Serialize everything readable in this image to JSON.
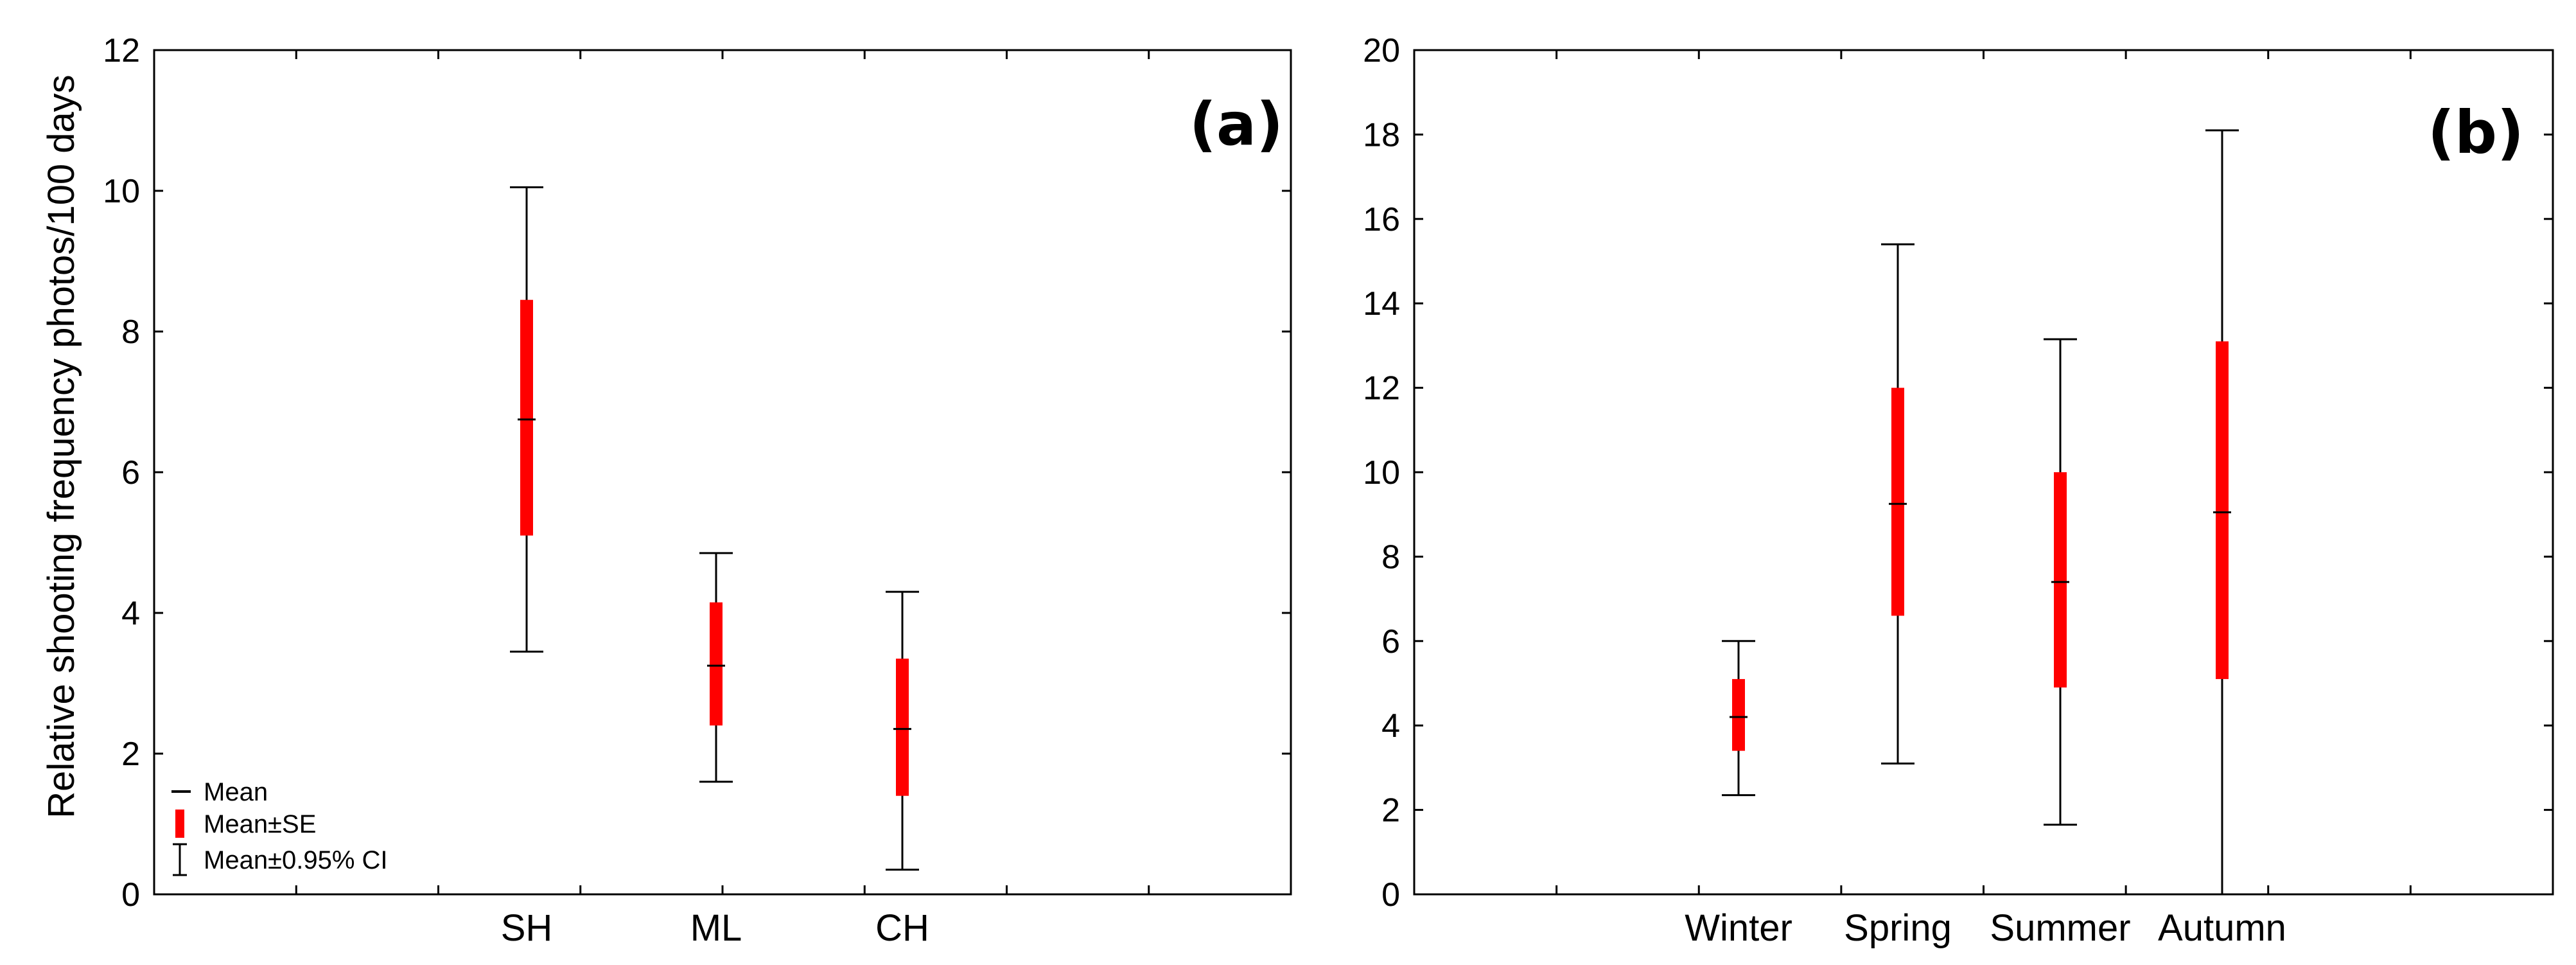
{
  "chart_data": [
    {
      "type": "box",
      "panel_label": "(a)",
      "ylabel": "Relative shooting frequency photos/100 days",
      "xlabel": "",
      "ylim": [
        0,
        12
      ],
      "yticks": [
        0,
        2,
        4,
        6,
        8,
        10,
        12
      ],
      "categories": [
        "SH",
        "ML",
        "CH"
      ],
      "series": [
        {
          "mean": [
            6.75,
            3.25,
            2.35
          ],
          "se_low": [
            5.1,
            2.4,
            1.4
          ],
          "se_high": [
            8.45,
            4.15,
            3.35
          ],
          "ci_low": [
            3.45,
            1.6,
            0.35
          ],
          "ci_high": [
            10.05,
            4.85,
            4.3
          ]
        }
      ],
      "legend": {
        "position": "bottom-left",
        "entries": [
          "Mean",
          "Mean±SE",
          "Mean±0.95% CI"
        ]
      },
      "colors": {
        "se_bar": "#ff0000",
        "whisker": "#000000",
        "frame": "#000000"
      },
      "grid": false
    },
    {
      "type": "box",
      "panel_label": "(b)",
      "ylabel": "",
      "xlabel": "",
      "ylim": [
        0,
        20
      ],
      "yticks": [
        0,
        2,
        4,
        6,
        8,
        10,
        12,
        14,
        16,
        18,
        20
      ],
      "categories": [
        "Winter",
        "Spring",
        "Summer",
        "Autumn"
      ],
      "series": [
        {
          "mean": [
            4.2,
            9.25,
            7.4,
            9.05
          ],
          "se_low": [
            3.4,
            6.6,
            4.9,
            5.1
          ],
          "se_high": [
            5.1,
            12.0,
            10.0,
            13.1
          ],
          "ci_low": [
            2.35,
            3.1,
            1.65,
            0.0
          ],
          "ci_high": [
            6.0,
            15.4,
            13.15,
            18.1
          ]
        }
      ],
      "colors": {
        "se_bar": "#ff0000",
        "whisker": "#000000",
        "frame": "#000000"
      },
      "grid": false
    }
  ]
}
